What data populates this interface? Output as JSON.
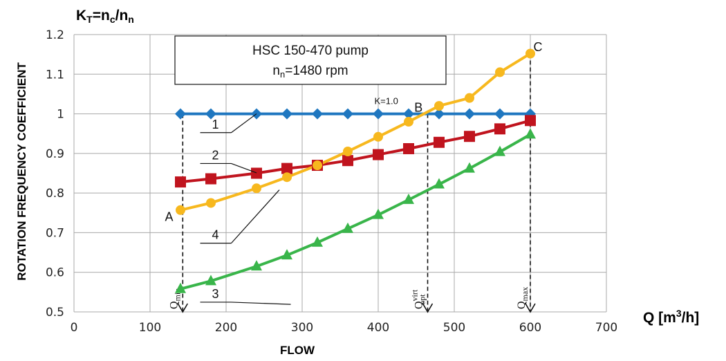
{
  "chart_data": {
    "type": "line",
    "title_box": {
      "line1": "HSC 150-470 pump",
      "line2_main": "n",
      "line2_sub": "n",
      "line2_rest": "=1480 rpm"
    },
    "corner_title": {
      "k": "K",
      "k_sub": "T",
      "eq": "=n",
      "c_sub": "c",
      "slash": "/n",
      "n_sub": "n"
    },
    "ylabel": "ROTATION FREQUENCY COEFFICIENT",
    "xlabel": "FLOW",
    "x_unit": {
      "main": "Q [m",
      "sup": "3",
      "rest": "/h]"
    },
    "xlim": [
      0,
      700
    ],
    "ylim": [
      0.5,
      1.2
    ],
    "x_ticks": [
      0,
      100,
      200,
      300,
      400,
      500,
      600,
      700
    ],
    "y_ticks": [
      0.5,
      0.6,
      0.7,
      0.8,
      0.9,
      1.0,
      1.1,
      1.2
    ],
    "y_tick_labels": [
      "0.5",
      "0.6",
      "0.7",
      "0.8",
      "0.9",
      "1",
      "1.1",
      "1.2"
    ],
    "grid": true,
    "series": [
      {
        "id": "1",
        "marker": "diamond",
        "color": "#1f77c0",
        "x": [
          140,
          180,
          240,
          280,
          320,
          360,
          400,
          440,
          480,
          520,
          560,
          600
        ],
        "y": [
          1.0,
          1.0,
          1.0,
          1.0,
          1.0,
          1.0,
          1.0,
          1.0,
          1.0,
          1.0,
          1.0,
          1.0
        ]
      },
      {
        "id": "2",
        "marker": "square",
        "color": "#c0141e",
        "x": [
          140,
          180,
          240,
          280,
          320,
          360,
          400,
          440,
          480,
          520,
          560,
          600
        ],
        "y": [
          0.828,
          0.836,
          0.85,
          0.862,
          0.87,
          0.882,
          0.897,
          0.912,
          0.928,
          0.943,
          0.962,
          0.983
        ]
      },
      {
        "id": "3",
        "marker": "triangle",
        "color": "#39b54a",
        "x": [
          140,
          180,
          240,
          280,
          320,
          360,
          400,
          440,
          480,
          520,
          560,
          600
        ],
        "y": [
          0.558,
          0.578,
          0.615,
          0.643,
          0.675,
          0.71,
          0.745,
          0.783,
          0.822,
          0.862,
          0.904,
          0.948
        ]
      },
      {
        "id": "4",
        "marker": "circle",
        "color": "#f7b81e",
        "x": [
          140,
          180,
          240,
          280,
          320,
          360,
          400,
          440,
          480,
          520,
          560,
          600
        ],
        "y": [
          0.757,
          0.775,
          0.812,
          0.84,
          0.87,
          0.905,
          0.942,
          0.98,
          1.02,
          1.04,
          1.105,
          1.152
        ]
      }
    ],
    "curve_labels": [
      {
        "text": "1",
        "x": 175,
        "y": 0.963,
        "lx": 205,
        "ly": 0.96,
        "tx": 240,
        "ty": 1.0
      },
      {
        "text": "2",
        "x": 175,
        "y": 0.885,
        "lx": 205,
        "ly": 0.883,
        "tx": 240,
        "ty": 0.851
      },
      {
        "text": "4",
        "x": 175,
        "y": 0.684,
        "lx": 205,
        "ly": 0.681,
        "tx": 270,
        "ty": 0.808
      },
      {
        "text": "3",
        "x": 175,
        "y": 0.535,
        "lx": 205,
        "ly": 0.55,
        "tx": 285,
        "ty": 0.519
      }
    ],
    "point_labels": [
      {
        "text": "A",
        "x": 125,
        "y": 0.742
      },
      {
        "text": "B",
        "x": 453,
        "y": 1.018
      },
      {
        "text": "C",
        "x": 610,
        "y": 1.17
      }
    ],
    "k_ref_label": {
      "text": "K=1.0",
      "x": 395,
      "y": 1.025
    },
    "vlines": [
      {
        "x": 143,
        "from": 1.0,
        "to": 0.5,
        "label": "Q",
        "sub": "min",
        "sup": ""
      },
      {
        "x": 465,
        "from": 1.0,
        "to": 0.5,
        "label": "Q",
        "sub": "opt",
        "sup": "virt"
      },
      {
        "x": 600,
        "from": 1.152,
        "to": 0.5,
        "label": "Q",
        "sub": "max",
        "sup": ""
      }
    ]
  }
}
